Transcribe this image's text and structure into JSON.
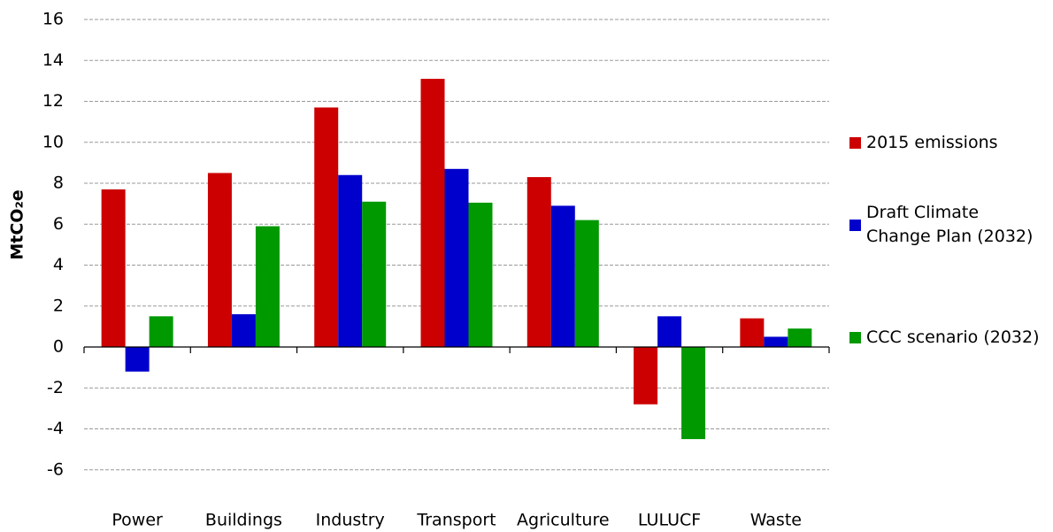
{
  "chart_data": {
    "type": "bar",
    "y_label": "MtCO₂e",
    "categories": [
      "Power",
      "Buildings",
      "Industry",
      "Transport",
      "Agriculture",
      "LULUCF",
      "Waste"
    ],
    "series": [
      {
        "name": "2015 emissions",
        "color": "#cc0000",
        "values": [
          7.7,
          8.5,
          11.7,
          13.1,
          8.3,
          -2.8,
          1.4
        ]
      },
      {
        "name": "Draft Climate Change Plan (2032)",
        "color": "#0000cc",
        "values": [
          -1.2,
          1.6,
          8.4,
          8.7,
          6.9,
          1.5,
          0.5
        ]
      },
      {
        "name": "CCC scenario (2032)",
        "color": "#009900",
        "values": [
          1.5,
          5.9,
          7.1,
          7.05,
          6.2,
          -4.5,
          0.9
        ]
      }
    ],
    "ylim": [
      -6,
      16
    ],
    "yticks": [
      -6,
      -4,
      -2,
      0,
      2,
      4,
      6,
      8,
      10,
      12,
      14,
      16
    ],
    "grid": true
  }
}
